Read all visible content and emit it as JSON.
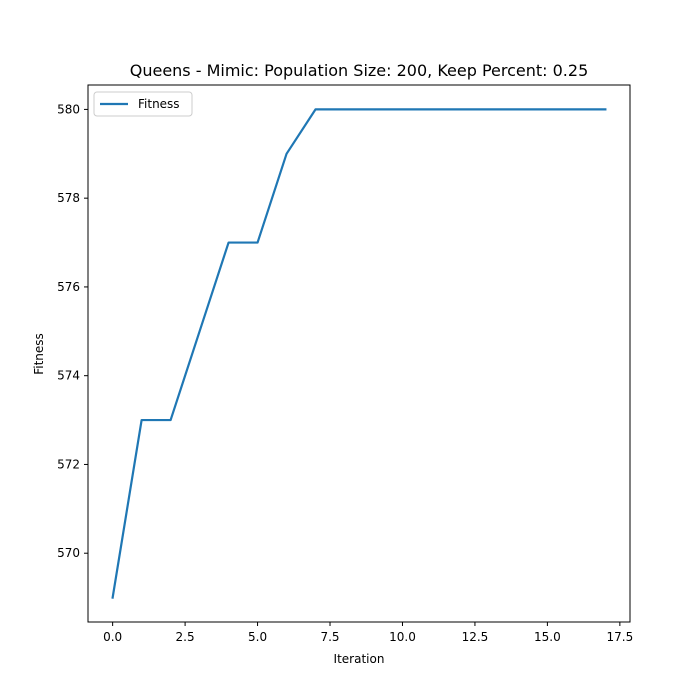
{
  "chart_data": {
    "type": "line",
    "title": "Queens - Mimic: Population Size: 200, Keep Percent: 0.25",
    "xlabel": "Iteration",
    "ylabel": "Fitness",
    "xlim": [
      -0.85,
      17.85
    ],
    "ylim": [
      568.45,
      580.55
    ],
    "xticks": [
      0.0,
      2.5,
      5.0,
      7.5,
      10.0,
      12.5,
      15.0,
      17.5
    ],
    "xtick_labels": [
      "0.0",
      "2.5",
      "5.0",
      "7.5",
      "10.0",
      "12.5",
      "15.0",
      "17.5"
    ],
    "yticks": [
      570,
      572,
      574,
      576,
      578,
      580
    ],
    "ytick_labels": [
      "570",
      "572",
      "574",
      "576",
      "578",
      "580"
    ],
    "grid": false,
    "legend_position": "top-left",
    "series": [
      {
        "name": "Fitness",
        "color": "#1f77b4",
        "x": [
          0,
          1,
          2,
          3,
          4,
          5,
          6,
          7,
          8,
          9,
          10,
          11,
          12,
          13,
          14,
          15,
          16,
          17
        ],
        "y": [
          569,
          573,
          573,
          575,
          577,
          577,
          579,
          580,
          580,
          580,
          580,
          580,
          580,
          580,
          580,
          580,
          580,
          580
        ]
      }
    ]
  }
}
